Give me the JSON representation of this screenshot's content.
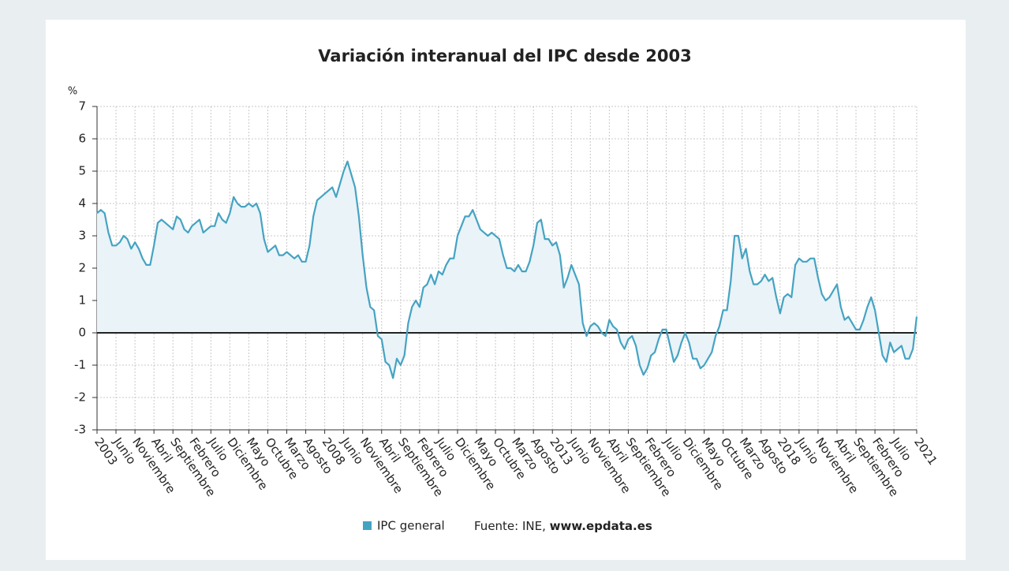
{
  "chart_data": {
    "type": "line",
    "title": "Variación interanual del IPC desde 2003",
    "y_label": "%",
    "categories": [
      "2003",
      null,
      null,
      null,
      null,
      "Junio",
      null,
      null,
      null,
      null,
      "Noviembre",
      null,
      null,
      null,
      null,
      "Abril",
      null,
      null,
      null,
      null,
      "Septiembre",
      null,
      null,
      null,
      null,
      "Febrero",
      null,
      null,
      null,
      null,
      "Julio",
      null,
      null,
      null,
      null,
      "Diciembre",
      null,
      null,
      null,
      null,
      "Mayo",
      null,
      null,
      null,
      null,
      "Octubre",
      null,
      null,
      null,
      null,
      "Marzo",
      null,
      null,
      null,
      null,
      "Agosto",
      null,
      null,
      null,
      null,
      "2008",
      null,
      null,
      null,
      null,
      "Junio",
      null,
      null,
      null,
      null,
      "Noviembre",
      null,
      null,
      null,
      null,
      "Abril",
      null,
      null,
      null,
      null,
      "Septiembre",
      null,
      null,
      null,
      null,
      "Febrero",
      null,
      null,
      null,
      null,
      "Julio",
      null,
      null,
      null,
      null,
      "Diciembre",
      null,
      null,
      null,
      null,
      "Mayo",
      null,
      null,
      null,
      null,
      "Octubre",
      null,
      null,
      null,
      null,
      "Marzo",
      null,
      null,
      null,
      null,
      "Agosto",
      null,
      null,
      null,
      null,
      "2013",
      null,
      null,
      null,
      null,
      "Junio",
      null,
      null,
      null,
      null,
      "Noviembre",
      null,
      null,
      null,
      null,
      "Abril",
      null,
      null,
      null,
      null,
      "Septiembre",
      null,
      null,
      null,
      null,
      "Febrero",
      null,
      null,
      null,
      null,
      "Julio",
      null,
      null,
      null,
      null,
      "Diciembre",
      null,
      null,
      null,
      null,
      "Mayo",
      null,
      null,
      null,
      null,
      "Octubre",
      null,
      null,
      null,
      null,
      "Marzo",
      null,
      null,
      null,
      null,
      "Agosto",
      null,
      null,
      null,
      null,
      "2018",
      null,
      null,
      null,
      null,
      "Junio",
      null,
      null,
      null,
      null,
      "Noviembre",
      null,
      null,
      null,
      null,
      "Abril",
      null,
      null,
      null,
      null,
      "Septiembre",
      null,
      null,
      null,
      null,
      "Febrero",
      null,
      null,
      null,
      null,
      "Julio",
      null,
      null,
      null,
      null,
      null,
      "2021"
    ],
    "series": [
      {
        "name": "IPC general",
        "color": "#45a3c2",
        "values": [
          3.7,
          3.8,
          3.7,
          3.1,
          2.7,
          2.7,
          2.8,
          3.0,
          2.9,
          2.6,
          2.8,
          2.6,
          2.3,
          2.1,
          2.1,
          2.7,
          3.4,
          3.5,
          3.4,
          3.3,
          3.2,
          3.6,
          3.5,
          3.2,
          3.1,
          3.3,
          3.4,
          3.5,
          3.1,
          3.2,
          3.3,
          3.3,
          3.7,
          3.5,
          3.4,
          3.7,
          4.2,
          4.0,
          3.9,
          3.9,
          4.0,
          3.9,
          4.0,
          3.7,
          2.9,
          2.5,
          2.6,
          2.7,
          2.4,
          2.4,
          2.5,
          2.4,
          2.3,
          2.4,
          2.2,
          2.2,
          2.7,
          3.6,
          4.1,
          4.2,
          4.3,
          4.4,
          4.5,
          4.2,
          4.6,
          5.0,
          5.3,
          4.9,
          4.5,
          3.6,
          2.4,
          1.4,
          0.8,
          0.7,
          -0.1,
          -0.2,
          -0.9,
          -1.0,
          -1.4,
          -0.8,
          -1.0,
          -0.7,
          0.3,
          0.8,
          1.0,
          0.8,
          1.4,
          1.5,
          1.8,
          1.5,
          1.9,
          1.8,
          2.1,
          2.3,
          2.3,
          3.0,
          3.3,
          3.6,
          3.6,
          3.8,
          3.5,
          3.2,
          3.1,
          3.0,
          3.1,
          3.0,
          2.9,
          2.4,
          2.0,
          2.0,
          1.9,
          2.1,
          1.9,
          1.9,
          2.2,
          2.7,
          3.4,
          3.5,
          2.9,
          2.9,
          2.7,
          2.8,
          2.4,
          1.4,
          1.7,
          2.1,
          1.8,
          1.5,
          0.3,
          -0.1,
          0.2,
          0.3,
          0.2,
          0.0,
          -0.1,
          0.4,
          0.2,
          0.1,
          -0.3,
          -0.5,
          -0.2,
          -0.1,
          -0.4,
          -1.0,
          -1.3,
          -1.1,
          -0.7,
          -0.6,
          -0.2,
          0.1,
          0.1,
          -0.4,
          -0.9,
          -0.7,
          -0.3,
          0.0,
          -0.3,
          -0.8,
          -0.8,
          -1.1,
          -1.0,
          -0.8,
          -0.6,
          -0.1,
          0.2,
          0.7,
          0.7,
          1.6,
          3.0,
          3.0,
          2.3,
          2.6,
          1.9,
          1.5,
          1.5,
          1.6,
          1.8,
          1.6,
          1.7,
          1.1,
          0.6,
          1.1,
          1.2,
          1.1,
          2.1,
          2.3,
          2.2,
          2.2,
          2.3,
          2.3,
          1.7,
          1.2,
          1.0,
          1.1,
          1.3,
          1.5,
          0.8,
          0.4,
          0.5,
          0.3,
          0.1,
          0.1,
          0.4,
          0.8,
          1.1,
          0.7,
          0.0,
          -0.7,
          -0.9,
          -0.3,
          -0.6,
          -0.5,
          -0.4,
          -0.8,
          -0.8,
          -0.5,
          0.5
        ]
      }
    ],
    "ylim": [
      -3,
      7
    ],
    "yticks": [
      -3,
      -2,
      -1,
      0,
      1,
      2,
      3,
      4,
      5,
      6,
      7
    ],
    "grid": true,
    "area_fill": "#e9f3f8",
    "source": "Fuente: INE,",
    "source_site": "www.epdata.es"
  }
}
